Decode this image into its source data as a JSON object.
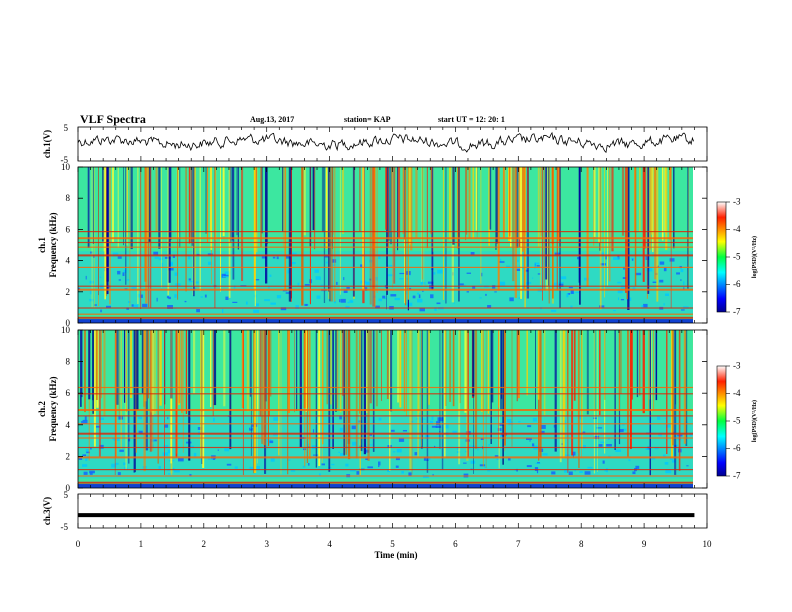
{
  "header": {
    "title": "VLF Spectra",
    "date": "Aug.13, 2017",
    "station": "station= KAP",
    "start": "start  UT  =   12: 20: 1"
  },
  "chart_data": [
    {
      "type": "line",
      "name": "ch1-waveform",
      "ylabel": "ch.1(V)",
      "ylim": [
        -5,
        5
      ],
      "yticks": [
        "5",
        "-5"
      ],
      "xlim": [
        0,
        10
      ],
      "style": "noisy waveform, amplitude approx 2.5 V, fluctuating between about -1.5 and +3.5 V"
    },
    {
      "type": "heatmap",
      "name": "ch1-spectrogram",
      "ylabel": "ch.1\nFrequency (kHz)",
      "ylabel_line1": "ch.1",
      "ylabel_line2": "Frequency (kHz)",
      "ylim": [
        0,
        10
      ],
      "yticks": [
        "0",
        "2",
        "4",
        "6",
        "8",
        "10"
      ],
      "xlim": [
        0,
        9.8
      ],
      "colorbar": {
        "label": "log(PSD)(V²/Hz)",
        "range": [
          -7,
          -3
        ],
        "ticks": [
          "-3",
          "-4",
          "-5",
          "-6",
          "-7"
        ]
      },
      "bands_khz": [
        0.4,
        0.6,
        1.0,
        2.2,
        2.4,
        3.6,
        4.4,
        4.9,
        5.2,
        5.5,
        5.9
      ]
    },
    {
      "type": "heatmap",
      "name": "ch2-spectrogram",
      "ylabel_line1": "ch.2",
      "ylabel_line2": "Frequency (kHz)",
      "ylim": [
        0,
        10
      ],
      "yticks": [
        "0",
        "2",
        "4",
        "6",
        "8",
        "10"
      ],
      "xlim": [
        0,
        9.8
      ],
      "colorbar": {
        "label": "log(PSD)(V²/Hz)",
        "range": [
          -7,
          -3
        ],
        "ticks": [
          "-3",
          "-4",
          "-5",
          "-6",
          "-7"
        ]
      },
      "bands_khz": [
        0.4,
        0.8,
        1.2,
        2.0,
        2.6,
        3.2,
        3.5,
        4.1,
        4.6,
        5.0,
        6.0,
        6.4
      ]
    },
    {
      "type": "line",
      "name": "ch3-waveform",
      "ylabel": "ch.3(V)",
      "ylim": [
        -5,
        5
      ],
      "yticks": [
        "5",
        "-5"
      ],
      "values": {
        "x": [
          0,
          9.8
        ],
        "y": [
          -1.2,
          -1.2
        ]
      },
      "xlabel": "Time  (min)",
      "xticks": [
        "0",
        "1",
        "2",
        "3",
        "4",
        "5",
        "6",
        "7",
        "8",
        "9",
        "10"
      ]
    }
  ]
}
